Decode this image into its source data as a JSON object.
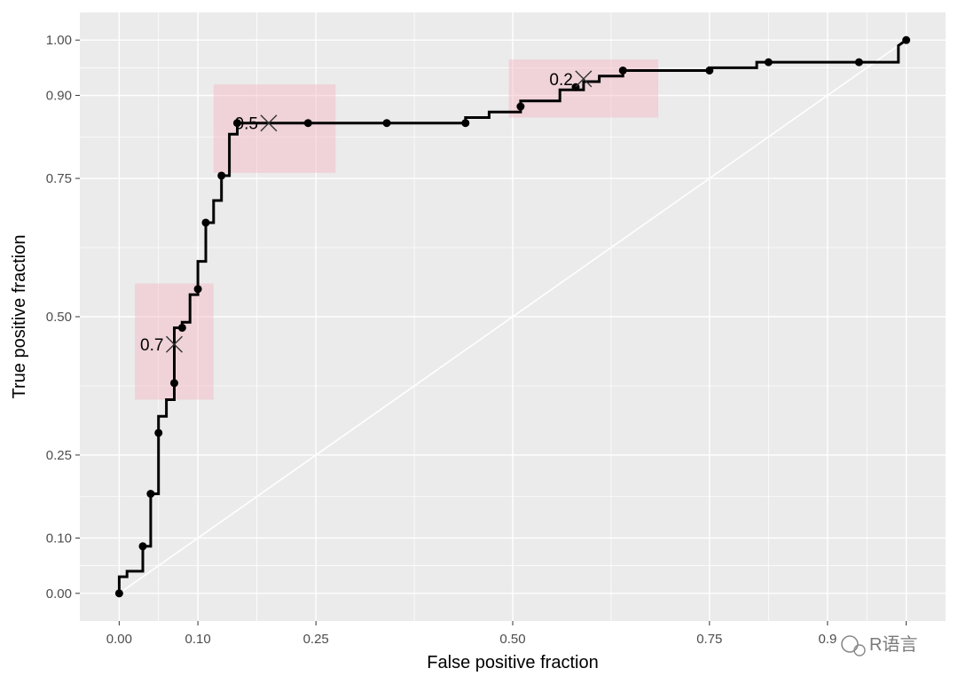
{
  "watermark": {
    "text": "R语言"
  },
  "colors": {
    "panel": "#ebebeb",
    "grid": "#ffffff",
    "curve": "#000000",
    "highlight": "#f4b6c2"
  },
  "chart_data": {
    "type": "line",
    "title": "",
    "xlabel": "False positive fraction",
    "ylabel": "True positive fraction",
    "xlim": [
      -0.05,
      1.05
    ],
    "ylim": [
      -0.05,
      1.05
    ],
    "x_ticks": [
      0.0,
      0.1,
      0.25,
      0.5,
      0.75,
      0.9,
      1.0
    ],
    "x_tick_labels": [
      "0.00",
      "0.10",
      "0.25",
      "0.50",
      "0.75",
      "0.9",
      ""
    ],
    "y_ticks": [
      0.0,
      0.1,
      0.25,
      0.5,
      0.75,
      0.9,
      1.0
    ],
    "y_tick_labels": [
      "0.00",
      "0.10",
      "0.25",
      "0.50",
      "0.75",
      "0.90",
      "1.00"
    ],
    "grid": true,
    "reference_line": {
      "x": [
        0,
        1
      ],
      "y": [
        0,
        1
      ]
    },
    "roc_step": [
      [
        0.0,
        0.0
      ],
      [
        0.0,
        0.03
      ],
      [
        0.01,
        0.03
      ],
      [
        0.01,
        0.04
      ],
      [
        0.03,
        0.04
      ],
      [
        0.03,
        0.08
      ],
      [
        0.03,
        0.085
      ],
      [
        0.04,
        0.085
      ],
      [
        0.04,
        0.105
      ],
      [
        0.04,
        0.18
      ],
      [
        0.05,
        0.18
      ],
      [
        0.05,
        0.25
      ],
      [
        0.05,
        0.29
      ],
      [
        0.05,
        0.32
      ],
      [
        0.06,
        0.32
      ],
      [
        0.06,
        0.35
      ],
      [
        0.07,
        0.35
      ],
      [
        0.07,
        0.38
      ],
      [
        0.07,
        0.48
      ],
      [
        0.08,
        0.48
      ],
      [
        0.08,
        0.49
      ],
      [
        0.09,
        0.49
      ],
      [
        0.09,
        0.54
      ],
      [
        0.1,
        0.54
      ],
      [
        0.1,
        0.55
      ],
      [
        0.1,
        0.6
      ],
      [
        0.11,
        0.6
      ],
      [
        0.11,
        0.67
      ],
      [
        0.12,
        0.67
      ],
      [
        0.12,
        0.71
      ],
      [
        0.13,
        0.71
      ],
      [
        0.13,
        0.755
      ],
      [
        0.14,
        0.755
      ],
      [
        0.14,
        0.83
      ],
      [
        0.15,
        0.83
      ],
      [
        0.15,
        0.85
      ],
      [
        0.16,
        0.85
      ],
      [
        0.2,
        0.85
      ],
      [
        0.24,
        0.85
      ],
      [
        0.34,
        0.85
      ],
      [
        0.44,
        0.85
      ],
      [
        0.44,
        0.86
      ],
      [
        0.47,
        0.86
      ],
      [
        0.47,
        0.87
      ],
      [
        0.51,
        0.87
      ],
      [
        0.51,
        0.89
      ],
      [
        0.56,
        0.89
      ],
      [
        0.56,
        0.91
      ],
      [
        0.59,
        0.91
      ],
      [
        0.59,
        0.925
      ],
      [
        0.61,
        0.925
      ],
      [
        0.61,
        0.935
      ],
      [
        0.64,
        0.935
      ],
      [
        0.64,
        0.945
      ],
      [
        0.75,
        0.945
      ],
      [
        0.75,
        0.95
      ],
      [
        0.81,
        0.95
      ],
      [
        0.81,
        0.96
      ],
      [
        0.94,
        0.96
      ],
      [
        0.99,
        0.96
      ],
      [
        0.99,
        0.99
      ],
      [
        1.0,
        1.0
      ]
    ],
    "points": [
      [
        0.0,
        0.0
      ],
      [
        0.03,
        0.085
      ],
      [
        0.04,
        0.18
      ],
      [
        0.05,
        0.29
      ],
      [
        0.07,
        0.38
      ],
      [
        0.08,
        0.48
      ],
      [
        0.1,
        0.55
      ],
      [
        0.11,
        0.67
      ],
      [
        0.13,
        0.755
      ],
      [
        0.15,
        0.85
      ],
      [
        0.24,
        0.85
      ],
      [
        0.34,
        0.85
      ],
      [
        0.44,
        0.85
      ],
      [
        0.51,
        0.88
      ],
      [
        0.58,
        0.915
      ],
      [
        0.64,
        0.945
      ],
      [
        0.75,
        0.945
      ],
      [
        0.825,
        0.96
      ],
      [
        0.94,
        0.96
      ],
      [
        1.0,
        1.0
      ]
    ],
    "cutoffs": [
      {
        "label": "0.7",
        "x": 0.07,
        "y": 0.45,
        "box": [
          0.02,
          0.12,
          0.35,
          0.56
        ]
      },
      {
        "label": "0.5",
        "x": 0.19,
        "y": 0.85,
        "box": [
          0.12,
          0.275,
          0.76,
          0.92
        ]
      },
      {
        "label": "0.2",
        "x": 0.59,
        "y": 0.93,
        "box": [
          0.495,
          0.685,
          0.86,
          0.965
        ]
      }
    ]
  }
}
